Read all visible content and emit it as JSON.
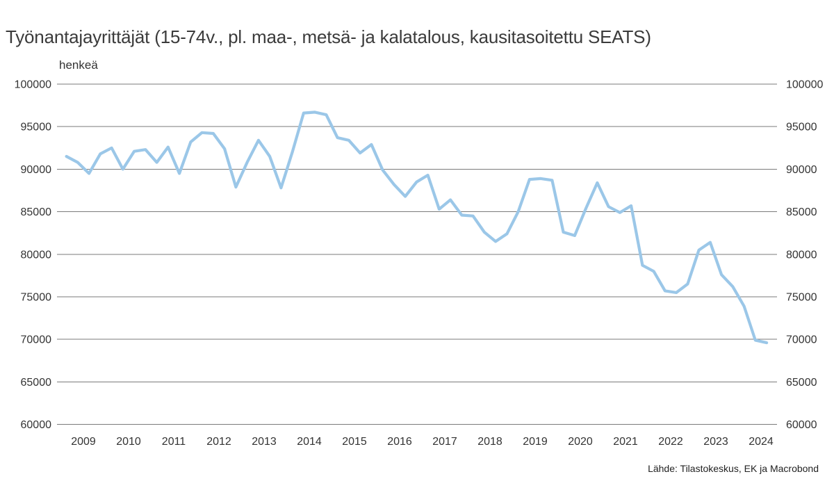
{
  "header": {
    "title": "Työnantajayrittäjät (15-74v., pl. maa-, metsä- ja kalatalous, kausitasoitettu SEATS)"
  },
  "footer": {
    "source": "Lähde: Tilastokeskus, EK ja Macrobond"
  },
  "colors": {
    "line": "#9bc7e8",
    "grid": "#7a7a7a",
    "tick_text": "#333333",
    "title_text": "#3b3b3b",
    "background": "#ffffff"
  },
  "chart_data": {
    "type": "line",
    "title": "Työnantajayrittäjät (15-74v., pl. maa-, metsä- ja kalatalous, kausitasoitettu SEATS)",
    "xlabel": "",
    "ylabel": "henkeä",
    "ylim": [
      60000,
      100000
    ],
    "ytick_step": 5000,
    "ytick_labels": [
      "100000",
      "95000",
      "90000",
      "85000",
      "80000",
      "75000",
      "70000",
      "65000",
      "60000"
    ],
    "ytick_values": [
      100000,
      95000,
      90000,
      85000,
      80000,
      75000,
      70000,
      65000,
      60000
    ],
    "x_year_labels": [
      "2009",
      "2010",
      "2011",
      "2012",
      "2013",
      "2014",
      "2015",
      "2016",
      "2017",
      "2018",
      "2019",
      "2020",
      "2021",
      "2022",
      "2023",
      "2024"
    ],
    "grid": "horizontal-only",
    "legend_position": "none",
    "axis_labels_both_sides": true,
    "series": [
      {
        "name": "Työnantajayrittäjät, kausitasoitettu",
        "frequency": "quarterly",
        "x": [
          "2009Q1",
          "2009Q2",
          "2009Q3",
          "2009Q4",
          "2010Q1",
          "2010Q2",
          "2010Q3",
          "2010Q4",
          "2011Q1",
          "2011Q2",
          "2011Q3",
          "2011Q4",
          "2012Q1",
          "2012Q2",
          "2012Q3",
          "2012Q4",
          "2013Q1",
          "2013Q2",
          "2013Q3",
          "2013Q4",
          "2014Q1",
          "2014Q2",
          "2014Q3",
          "2014Q4",
          "2015Q1",
          "2015Q2",
          "2015Q3",
          "2015Q4",
          "2016Q1",
          "2016Q2",
          "2016Q3",
          "2016Q4",
          "2017Q1",
          "2017Q2",
          "2017Q3",
          "2017Q4",
          "2018Q1",
          "2018Q2",
          "2018Q3",
          "2018Q4",
          "2019Q1",
          "2019Q2",
          "2019Q3",
          "2019Q4",
          "2020Q1",
          "2020Q2",
          "2020Q3",
          "2020Q4",
          "2021Q1",
          "2021Q2",
          "2021Q3",
          "2021Q4",
          "2022Q1",
          "2022Q2",
          "2022Q3",
          "2022Q4",
          "2023Q1",
          "2023Q2",
          "2023Q3",
          "2023Q4",
          "2024Q1",
          "2024Q2",
          "2024Q3"
        ],
        "values": [
          91500,
          90800,
          89500,
          91800,
          92500,
          90000,
          92100,
          92300,
          90800,
          92600,
          89500,
          93200,
          94300,
          94200,
          92400,
          87900,
          90800,
          93400,
          91500,
          87800,
          92000,
          96600,
          96700,
          96400,
          93700,
          93400,
          91900,
          92900,
          89900,
          88200,
          86800,
          88500,
          89300,
          85300,
          86400,
          84600,
          84500,
          82600,
          81500,
          82400,
          85000,
          88800,
          88900,
          88700,
          82600,
          82200,
          85400,
          88400,
          85600,
          84900,
          85700,
          78700,
          78000,
          75700,
          75500,
          76500,
          80500,
          81400,
          77600,
          76200,
          73900,
          69900,
          69600
        ]
      }
    ]
  }
}
